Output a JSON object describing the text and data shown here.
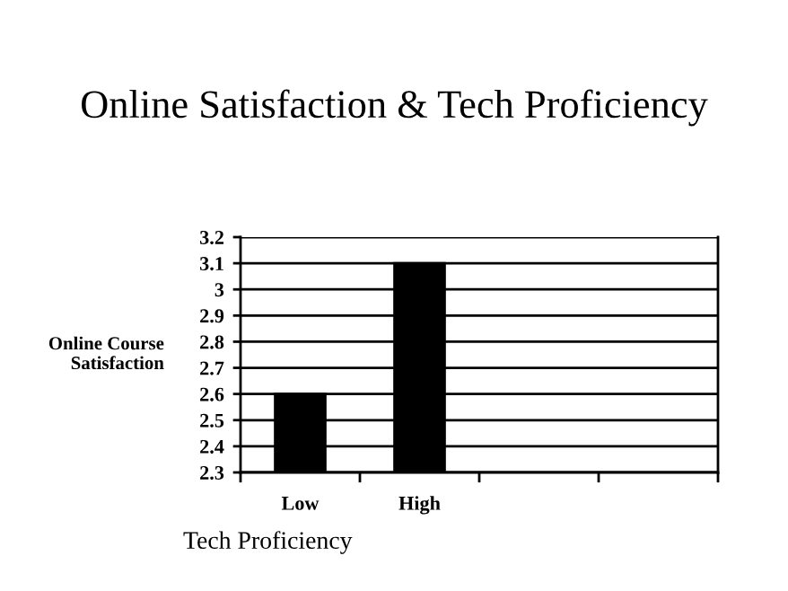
{
  "chart_data": {
    "type": "bar",
    "title": "Online Satisfaction & Tech Proficiency",
    "xlabel": "Tech Proficiency",
    "ylabel": "Online Course\nSatisfaction",
    "categories": [
      "Low",
      "High",
      null,
      null
    ],
    "values": [
      2.6,
      3.1,
      null,
      null
    ],
    "color": "#000000",
    "ylim": [
      2.3,
      3.2
    ],
    "yticks": [
      2.3,
      2.4,
      2.5,
      2.6,
      2.7,
      2.8,
      2.9,
      3,
      3.1,
      3.2
    ],
    "grid": "y",
    "legend": false
  }
}
